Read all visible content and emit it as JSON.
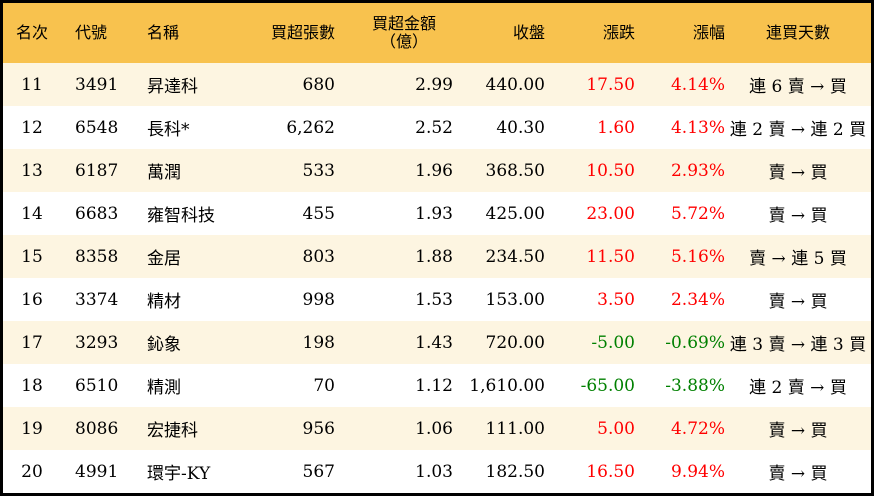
{
  "colors": {
    "header_bg": "#f8c24e",
    "odd_row_bg": "#fdf5e1",
    "up": "#ff0000",
    "down": "#008000"
  },
  "headers": [
    "名次",
    "代號",
    "名稱",
    "買超張數",
    "買超金額\n（億）",
    "收盤",
    "漲跌",
    "漲幅",
    "連買天數"
  ],
  "rows": [
    {
      "rank": "11",
      "code": "3491",
      "name": "昇達科",
      "shares": "680",
      "amount": "2.99",
      "close": "440.00",
      "change": "17.50",
      "pct": "4.14%",
      "dir": "up",
      "streak": "連 6 賣 → 買"
    },
    {
      "rank": "12",
      "code": "6548",
      "name": "長科*",
      "shares": "6,262",
      "amount": "2.52",
      "close": "40.30",
      "change": "1.60",
      "pct": "4.13%",
      "dir": "up",
      "streak": "連 2 賣 → 連 2 買"
    },
    {
      "rank": "13",
      "code": "6187",
      "name": "萬潤",
      "shares": "533",
      "amount": "1.96",
      "close": "368.50",
      "change": "10.50",
      "pct": "2.93%",
      "dir": "up",
      "streak": "賣 → 買"
    },
    {
      "rank": "14",
      "code": "6683",
      "name": "雍智科技",
      "shares": "455",
      "amount": "1.93",
      "close": "425.00",
      "change": "23.00",
      "pct": "5.72%",
      "dir": "up",
      "streak": "賣 → 買"
    },
    {
      "rank": "15",
      "code": "8358",
      "name": "金居",
      "shares": "803",
      "amount": "1.88",
      "close": "234.50",
      "change": "11.50",
      "pct": "5.16%",
      "dir": "up",
      "streak": "賣 → 連 5 買"
    },
    {
      "rank": "16",
      "code": "3374",
      "name": "精材",
      "shares": "998",
      "amount": "1.53",
      "close": "153.00",
      "change": "3.50",
      "pct": "2.34%",
      "dir": "up",
      "streak": "賣 → 買"
    },
    {
      "rank": "17",
      "code": "3293",
      "name": "鈊象",
      "shares": "198",
      "amount": "1.43",
      "close": "720.00",
      "change": "-5.00",
      "pct": "-0.69%",
      "dir": "down",
      "streak": "連 3 賣 → 連 3 買"
    },
    {
      "rank": "18",
      "code": "6510",
      "name": "精測",
      "shares": "70",
      "amount": "1.12",
      "close": "1,610.00",
      "change": "-65.00",
      "pct": "-3.88%",
      "dir": "down",
      "streak": "連 2 賣 → 買"
    },
    {
      "rank": "19",
      "code": "8086",
      "name": "宏捷科",
      "shares": "956",
      "amount": "1.06",
      "close": "111.00",
      "change": "5.00",
      "pct": "4.72%",
      "dir": "up",
      "streak": "賣 → 買"
    },
    {
      "rank": "20",
      "code": "4991",
      "name": "環宇-KY",
      "shares": "567",
      "amount": "1.03",
      "close": "182.50",
      "change": "16.50",
      "pct": "9.94%",
      "dir": "up",
      "streak": "賣 → 買"
    }
  ]
}
